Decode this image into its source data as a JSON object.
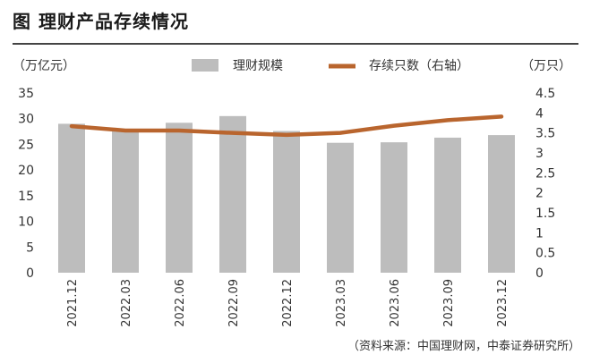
{
  "figure": {
    "title": "图 理财产品存续情况",
    "source": "（资料来源：中国理财网，中泰证券研究所）"
  },
  "chart_data": {
    "type": "bar+line",
    "categories": [
      "2021.12",
      "2022.03",
      "2022.06",
      "2022.09",
      "2022.12",
      "2023.03",
      "2023.06",
      "2023.09",
      "2023.12"
    ],
    "left_axis": {
      "label": "（万亿元）",
      "ylim": [
        0,
        35
      ],
      "ticks": [
        0,
        5,
        10,
        15,
        20,
        25,
        30,
        35
      ]
    },
    "right_axis": {
      "label": "（万只）",
      "ylim": [
        0,
        4.5
      ],
      "ticks": [
        "0",
        "0.5",
        "1",
        "1.5",
        "2",
        "2.5",
        "3",
        "3.5",
        "4",
        "4.5"
      ]
    },
    "series": [
      {
        "name": "理财规模",
        "type": "bar",
        "axis": "left",
        "color": "#bdbdbd",
        "values": [
          29.0,
          27.7,
          29.2,
          30.5,
          27.6,
          25.3,
          25.4,
          26.3,
          26.8
        ]
      },
      {
        "name": "存续只数（右轴）",
        "type": "line",
        "axis": "right",
        "color": "#b9652e",
        "values": [
          3.67,
          3.56,
          3.56,
          3.5,
          3.45,
          3.5,
          3.68,
          3.82,
          3.91
        ]
      }
    ],
    "grid": false,
    "legend": "top-center"
  }
}
